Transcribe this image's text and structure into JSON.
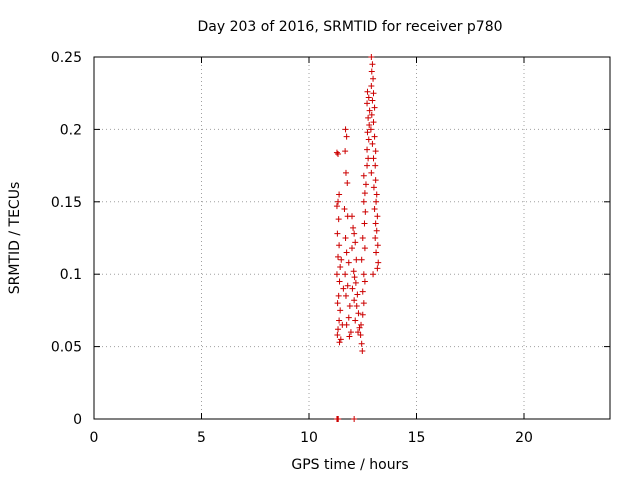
{
  "chart_data": {
    "type": "scatter",
    "title": "Day 203 of 2016, SRMTID for receiver p780",
    "xlabel": "GPS time / hours",
    "ylabel": "SRMTID / TECUs",
    "xlim": [
      0,
      24
    ],
    "ylim": [
      0,
      0.25
    ],
    "xticks": [
      0,
      5,
      10,
      15,
      20
    ],
    "xtick_labels": [
      "0",
      "5",
      "10",
      "15",
      "20"
    ],
    "yticks": [
      0,
      0.05,
      0.1,
      0.15,
      0.2,
      0.25
    ],
    "ytick_labels": [
      "0",
      "0.05",
      "0.1",
      "0.15",
      "0.2",
      "0.25"
    ],
    "grid": true,
    "marker": "plus",
    "color": "#cc0000",
    "series": [
      {
        "name": "SRMTID",
        "points": [
          [
            11.3,
            0.0
          ],
          [
            11.33,
            0.0
          ],
          [
            11.36,
            0.0
          ],
          [
            12.1,
            0.0
          ],
          [
            11.3,
            0.184
          ],
          [
            11.35,
            0.183
          ],
          [
            11.4,
            0.155
          ],
          [
            11.35,
            0.15
          ],
          [
            11.3,
            0.147
          ],
          [
            11.38,
            0.138
          ],
          [
            11.32,
            0.128
          ],
          [
            11.4,
            0.12
          ],
          [
            11.35,
            0.112
          ],
          [
            11.45,
            0.105
          ],
          [
            11.3,
            0.1
          ],
          [
            11.42,
            0.095
          ],
          [
            11.38,
            0.085
          ],
          [
            11.33,
            0.08
          ],
          [
            11.45,
            0.075
          ],
          [
            11.4,
            0.068
          ],
          [
            11.35,
            0.062
          ],
          [
            11.32,
            0.058
          ],
          [
            11.48,
            0.055
          ],
          [
            11.42,
            0.053
          ],
          [
            11.55,
            0.065
          ],
          [
            11.6,
            0.09
          ],
          [
            11.5,
            0.11
          ],
          [
            11.7,
            0.2
          ],
          [
            11.75,
            0.195
          ],
          [
            11.68,
            0.185
          ],
          [
            11.72,
            0.17
          ],
          [
            11.78,
            0.163
          ],
          [
            11.65,
            0.145
          ],
          [
            11.8,
            0.14
          ],
          [
            11.7,
            0.125
          ],
          [
            11.75,
            0.115
          ],
          [
            11.85,
            0.108
          ],
          [
            11.68,
            0.1
          ],
          [
            11.8,
            0.092
          ],
          [
            11.72,
            0.085
          ],
          [
            11.9,
            0.078
          ],
          [
            11.85,
            0.07
          ],
          [
            11.75,
            0.065
          ],
          [
            11.95,
            0.06
          ],
          [
            11.88,
            0.057
          ],
          [
            12.0,
            0.14
          ],
          [
            12.05,
            0.132
          ],
          [
            12.1,
            0.128
          ],
          [
            12.15,
            0.122
          ],
          [
            12.0,
            0.118
          ],
          [
            12.2,
            0.11
          ],
          [
            12.08,
            0.102
          ],
          [
            12.12,
            0.098
          ],
          [
            12.18,
            0.094
          ],
          [
            12.02,
            0.09
          ],
          [
            12.25,
            0.086
          ],
          [
            12.1,
            0.082
          ],
          [
            12.22,
            0.078
          ],
          [
            12.3,
            0.073
          ],
          [
            12.15,
            0.068
          ],
          [
            12.35,
            0.063
          ],
          [
            12.28,
            0.06
          ],
          [
            12.4,
            0.058
          ],
          [
            12.45,
            0.052
          ],
          [
            12.48,
            0.047
          ],
          [
            12.42,
            0.065
          ],
          [
            12.5,
            0.072
          ],
          [
            12.55,
            0.08
          ],
          [
            12.5,
            0.088
          ],
          [
            12.6,
            0.095
          ],
          [
            12.55,
            0.1
          ],
          [
            12.45,
            0.11
          ],
          [
            12.6,
            0.118
          ],
          [
            12.5,
            0.125
          ],
          [
            12.58,
            0.135
          ],
          [
            12.62,
            0.143
          ],
          [
            12.55,
            0.15
          ],
          [
            12.6,
            0.156
          ],
          [
            12.65,
            0.162
          ],
          [
            12.55,
            0.168
          ],
          [
            12.7,
            0.175
          ],
          [
            12.75,
            0.18
          ],
          [
            12.7,
            0.186
          ],
          [
            12.78,
            0.193
          ],
          [
            12.72,
            0.198
          ],
          [
            12.8,
            0.203
          ],
          [
            12.75,
            0.208
          ],
          [
            12.82,
            0.213
          ],
          [
            12.7,
            0.218
          ],
          [
            12.78,
            0.222
          ],
          [
            12.72,
            0.226
          ],
          [
            12.9,
            0.25
          ],
          [
            12.95,
            0.245
          ],
          [
            12.92,
            0.24
          ],
          [
            12.98,
            0.235
          ],
          [
            12.9,
            0.23
          ],
          [
            13.0,
            0.225
          ],
          [
            12.95,
            0.22
          ],
          [
            13.05,
            0.215
          ],
          [
            12.92,
            0.21
          ],
          [
            13.0,
            0.205
          ],
          [
            12.88,
            0.2
          ],
          [
            13.05,
            0.195
          ],
          [
            12.95,
            0.19
          ],
          [
            13.1,
            0.185
          ],
          [
            13.0,
            0.18
          ],
          [
            13.08,
            0.175
          ],
          [
            12.9,
            0.17
          ],
          [
            13.1,
            0.165
          ],
          [
            13.02,
            0.16
          ],
          [
            13.15,
            0.155
          ],
          [
            13.12,
            0.15
          ],
          [
            13.05,
            0.145
          ],
          [
            13.18,
            0.14
          ],
          [
            13.1,
            0.135
          ],
          [
            13.15,
            0.13
          ],
          [
            13.08,
            0.125
          ],
          [
            13.2,
            0.12
          ],
          [
            13.12,
            0.115
          ],
          [
            13.22,
            0.108
          ],
          [
            13.18,
            0.104
          ],
          [
            12.98,
            0.1
          ]
        ]
      }
    ]
  }
}
